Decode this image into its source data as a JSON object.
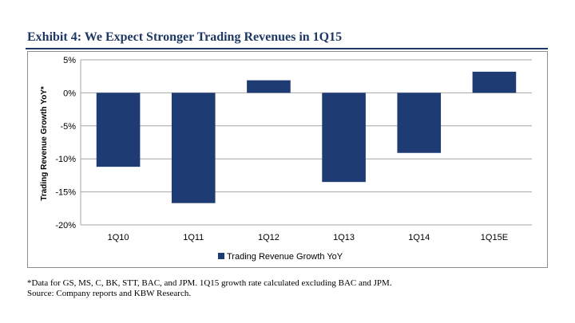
{
  "exhibit": {
    "title": "Exhibit 4: We Expect Stronger Trading Revenues in 1Q15"
  },
  "chart_data": {
    "type": "bar",
    "categories": [
      "1Q10",
      "1Q11",
      "1Q12",
      "1Q13",
      "1Q14",
      "1Q15E"
    ],
    "series": [
      {
        "name": "Trading Revenue Growth YoY",
        "values": [
          -11.2,
          -16.7,
          1.9,
          -13.5,
          -9.1,
          3.2
        ]
      }
    ],
    "ylabel": "Trading Revenue Growth YoY*",
    "xlabel": "",
    "ylim": [
      -20,
      5
    ],
    "yticks": [
      5,
      0,
      -5,
      -10,
      -15,
      -20
    ],
    "ytick_labels": [
      "5%",
      "0%",
      "-5%",
      "-10%",
      "-15%",
      "-20%"
    ],
    "grid": true,
    "legend_position": "bottom",
    "bar_color": "#1f3b73",
    "grid_color": "#a6a6a6"
  },
  "footnotes": {
    "note": "*Data for GS, MS, C, BK, STT, BAC, and JPM. 1Q15 growth rate calculated excluding BAC and JPM.",
    "source": "Source: Company reports and KBW Research."
  }
}
